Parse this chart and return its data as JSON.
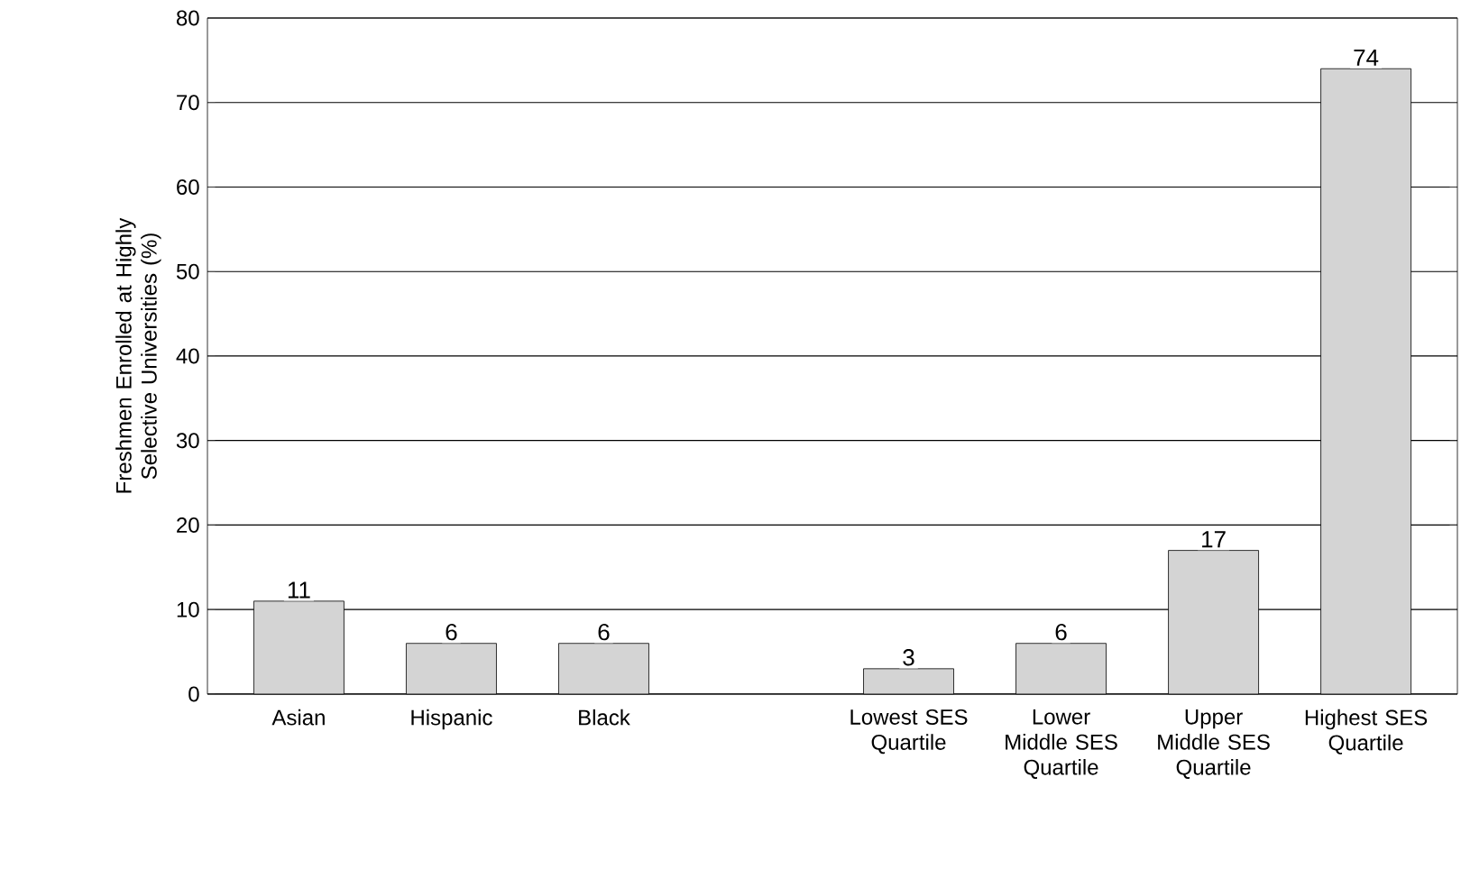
{
  "chart_data": {
    "type": "bar",
    "ylabel": "Freshmen Enrolled at Highly Selective Universities (%)",
    "categories": [
      "Asian",
      "Hispanic",
      "Black",
      null,
      "Lowest SES Quartile",
      "Lower Middle SES Quartile",
      "Upper Middle SES Quartile",
      "Highest SES Quartile"
    ],
    "values": [
      11,
      6,
      6,
      null,
      3,
      6,
      17,
      74
    ],
    "color": "#d4d4d4",
    "ylim": [
      0,
      80
    ],
    "yticks": [
      0,
      10,
      20,
      30,
      40,
      50,
      60,
      70,
      80
    ],
    "grid": "y",
    "data_labels": true
  }
}
